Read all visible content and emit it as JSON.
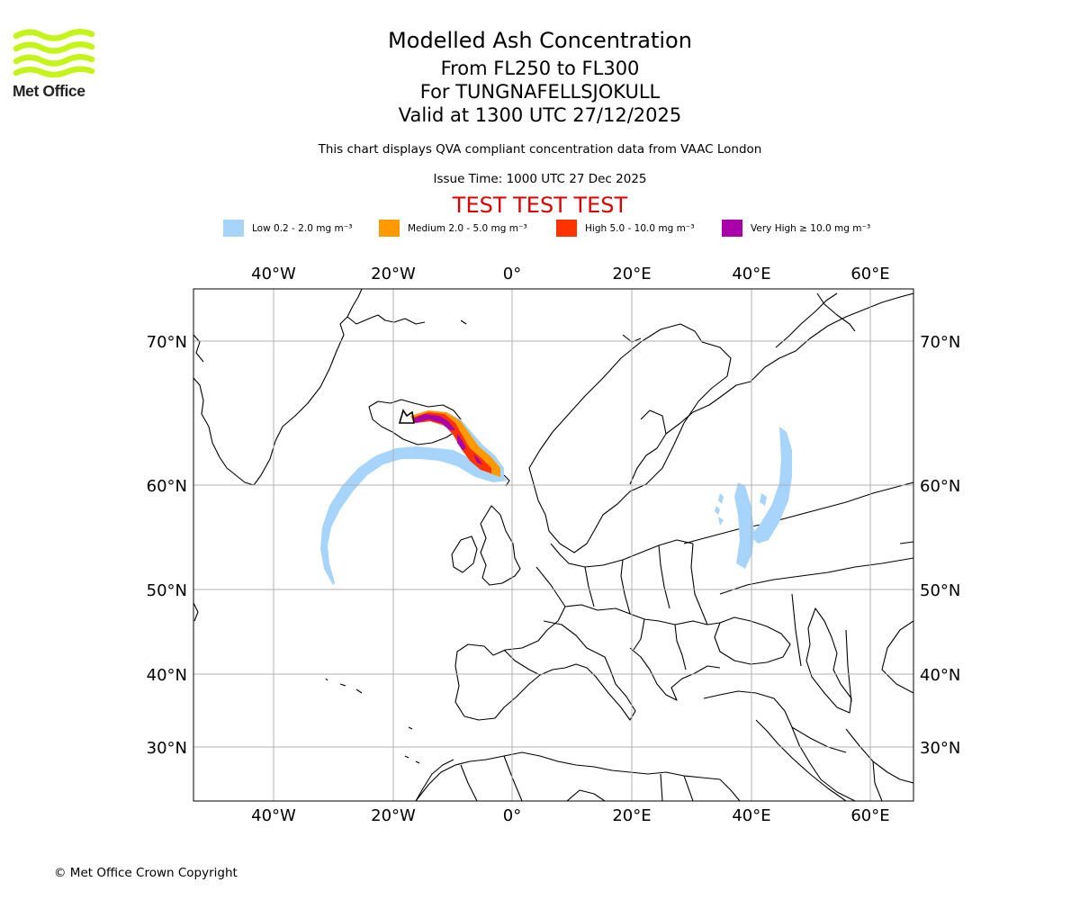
{
  "header": {
    "logo_text": "Met Office",
    "title": "Modelled Ash Concentration",
    "level": "From FL250 to FL300",
    "volcano": "For TUNGNAFELLSJOKULL",
    "valid": "Valid at 1300 UTC 27/12/2025",
    "subtitle": "This chart displays QVA compliant concentration data from VAAC London",
    "issue_time": "Issue Time: 1000 UTC 27 Dec 2025",
    "test_banner": "TEST TEST TEST"
  },
  "legend": [
    {
      "label": "Low 0.2 - 2.0 mg m⁻³",
      "color": "#a6d4fb"
    },
    {
      "label": "Medium 2.0 - 5.0 mg m⁻³",
      "color": "#ff9900"
    },
    {
      "label": "High 5.0 - 10.0 mg m⁻³",
      "color": "#ff3300"
    },
    {
      "label": "Very High ≥ 10.0 mg m⁻³",
      "color": "#aa00aa"
    }
  ],
  "chart_data": {
    "type": "map",
    "projection": "Lambert-style, Europe / North Atlantic",
    "longitude_ticks": [
      {
        "value": -40,
        "label": "40°W"
      },
      {
        "value": -20,
        "label": "20°W"
      },
      {
        "value": 0,
        "label": "0°"
      },
      {
        "value": 20,
        "label": "20°E"
      },
      {
        "value": 40,
        "label": "40°E"
      },
      {
        "value": 60,
        "label": "60°E"
      }
    ],
    "latitude_ticks": [
      {
        "value": 70,
        "label": "70°N"
      },
      {
        "value": 60,
        "label": "60°N"
      },
      {
        "value": 50,
        "label": "50°N"
      },
      {
        "value": 40,
        "label": "40°N"
      },
      {
        "value": 30,
        "label": "30°N"
      }
    ],
    "ash_regions": [
      {
        "level": "Low",
        "area": "Arc from south of Iceland curving west and south over the North Atlantic"
      },
      {
        "level": "Low",
        "area": "Scattered patches over western Russia around 35-45°E, 52-63°N"
      },
      {
        "level": "Medium",
        "area": "Plume from central Iceland toward the Faroe Islands"
      },
      {
        "level": "High",
        "area": "Core of plume from central Iceland southeast toward the Faroe Islands"
      },
      {
        "level": "Very High",
        "area": "Narrow core over Iceland and along the plume axis"
      }
    ],
    "grid": true
  },
  "footer": {
    "copyright": "© Met Office Crown Copyright"
  }
}
